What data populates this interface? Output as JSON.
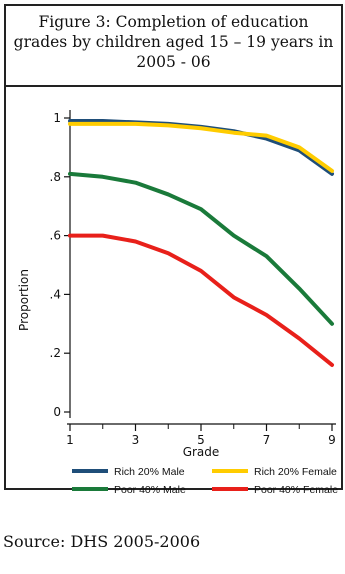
{
  "title_lines": [
    "Figure 3: Completion of education",
    "grades by children aged 15 – 19 years in",
    "2005 - 06"
  ],
  "source": "Source:  DHS 2005-2006",
  "chart_data": {
    "type": "line",
    "xlabel": "Grade",
    "ylabel": "Proportion",
    "xlim": [
      1,
      9
    ],
    "ylim": [
      0,
      1
    ],
    "x_ticks": [
      1,
      3,
      5,
      7,
      9
    ],
    "x_tick_labels": [
      "1",
      "3",
      "5",
      "7",
      "9"
    ],
    "y_ticks": [
      0,
      0.2,
      0.4,
      0.6,
      0.8,
      1
    ],
    "y_tick_labels": [
      "0",
      ".2",
      ".4",
      ".6",
      ".8",
      "1"
    ],
    "x": [
      1,
      2,
      3,
      4,
      5,
      6,
      7,
      8,
      9
    ],
    "series": [
      {
        "name": "Rich 20% Male",
        "color": "#1f4e79",
        "values": [
          0.99,
          0.99,
          0.985,
          0.98,
          0.97,
          0.955,
          0.93,
          0.89,
          0.81
        ]
      },
      {
        "name": "Rich 20% Female",
        "color": "#ffcc00",
        "values": [
          0.98,
          0.98,
          0.98,
          0.975,
          0.965,
          0.95,
          0.94,
          0.9,
          0.82
        ]
      },
      {
        "name": "Poor 40% Male",
        "color": "#1a7a3a",
        "values": [
          0.81,
          0.8,
          0.78,
          0.74,
          0.69,
          0.6,
          0.53,
          0.42,
          0.3
        ]
      },
      {
        "name": "Poor 40% Female",
        "color": "#e8201a",
        "values": [
          0.6,
          0.6,
          0.58,
          0.54,
          0.48,
          0.39,
          0.33,
          0.25,
          0.16
        ]
      }
    ],
    "legend_position": "bottom"
  }
}
